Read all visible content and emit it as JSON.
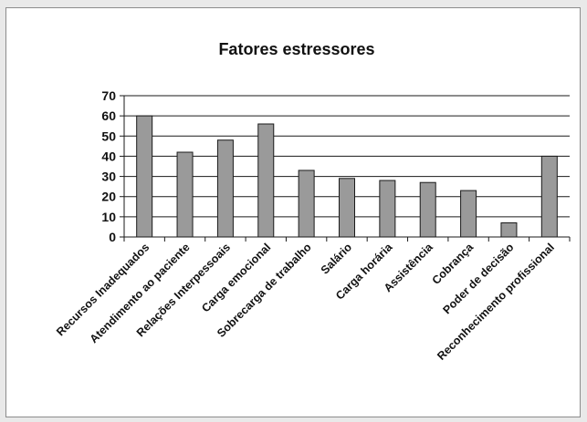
{
  "chart_data": {
    "type": "bar",
    "title": "Fatores estressores",
    "xlabel": "",
    "ylabel": "",
    "categories": [
      "Recursos Inadequados",
      "Atendimento ao paciente",
      "Relações Interpessoais",
      "Carga emocional",
      "Sobrecarga de trabalho",
      "Salário",
      "Carga horária",
      "Assistência",
      "Cobrança",
      "Poder de decisão",
      "Reconhecimento profissional"
    ],
    "values": [
      60,
      42,
      48,
      56,
      33,
      29,
      28,
      27,
      23,
      7,
      40
    ],
    "ylim": [
      0,
      70
    ],
    "yticks": [
      "0",
      "10",
      "20",
      "30",
      "40",
      "50",
      "60",
      "70"
    ],
    "grid": true,
    "legend": "none",
    "colors": {
      "bar_fill": "#9a9a9a",
      "bar_stroke": "#1a1a1a",
      "grid": "#1a1a1a",
      "text": "#111111",
      "background": "#ffffff"
    }
  }
}
